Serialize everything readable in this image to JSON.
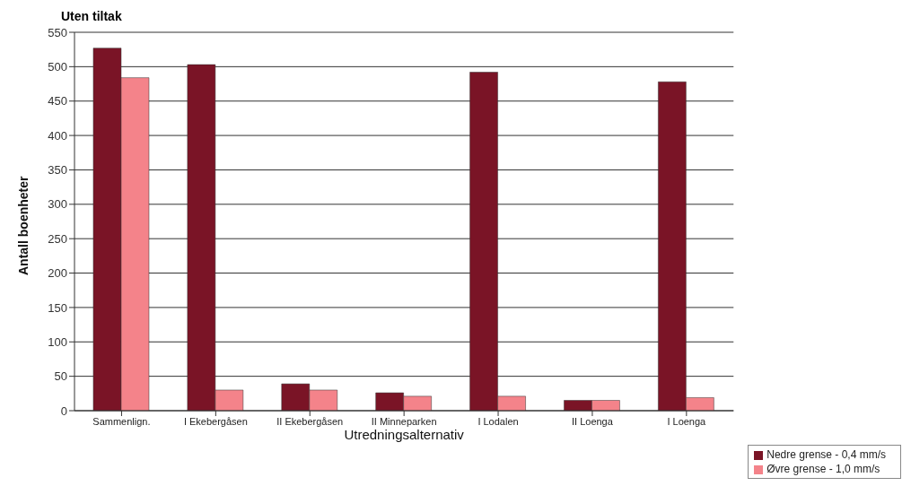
{
  "chart_data": {
    "type": "bar",
    "title": "Uten tiltak",
    "xlabel": "Utredningsalternativ",
    "ylabel": "Antall boenheter",
    "categories": [
      "Sammenlign.",
      "I Ekebergåsen",
      "II Ekebergåsen",
      "II Minneparken",
      "I Lodalen",
      "II Loenga",
      "I Loenga"
    ],
    "series": [
      {
        "name": "Nedre grense - 0,4 mm/s",
        "color": "#7a1426",
        "values": [
          527,
          503,
          39,
          26,
          492,
          15,
          478
        ]
      },
      {
        "name": "Øvre grense -  1,0 mm/s",
        "color": "#f4838a",
        "values": [
          484,
          30,
          30,
          21,
          21,
          15,
          19
        ]
      }
    ],
    "ylim": [
      0,
      550
    ],
    "yticks": [
      0,
      50,
      100,
      150,
      200,
      250,
      300,
      350,
      400,
      450,
      500,
      550
    ],
    "grid": "y",
    "legend": "bottom right"
  }
}
